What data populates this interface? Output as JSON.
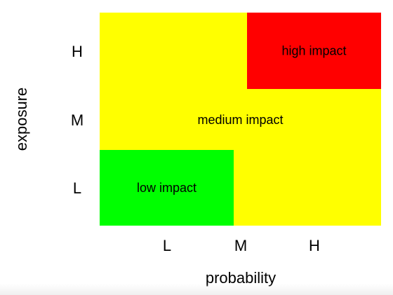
{
  "chart_data": {
    "type": "heatmap",
    "title": "",
    "xlabel": "probability",
    "ylabel": "exposure",
    "x_ticks": [
      "L",
      "M",
      "H"
    ],
    "y_ticks": [
      "L",
      "M",
      "H"
    ],
    "colors": {
      "background_zone": "#ffff00",
      "high_zone": "#ff0000",
      "low_zone": "#00ff00"
    },
    "zones": [
      {
        "label": "medium impact",
        "color": "#ffff00",
        "probability": [
          "L",
          "H"
        ],
        "exposure": [
          "L",
          "H"
        ]
      },
      {
        "label": "high impact",
        "color": "#ff0000",
        "probability": [
          "M",
          "H"
        ],
        "exposure": [
          "H",
          "H"
        ]
      },
      {
        "label": "low impact",
        "color": "#00ff00",
        "probability": [
          "L",
          "M"
        ],
        "exposure": [
          "L",
          "L"
        ]
      }
    ]
  }
}
